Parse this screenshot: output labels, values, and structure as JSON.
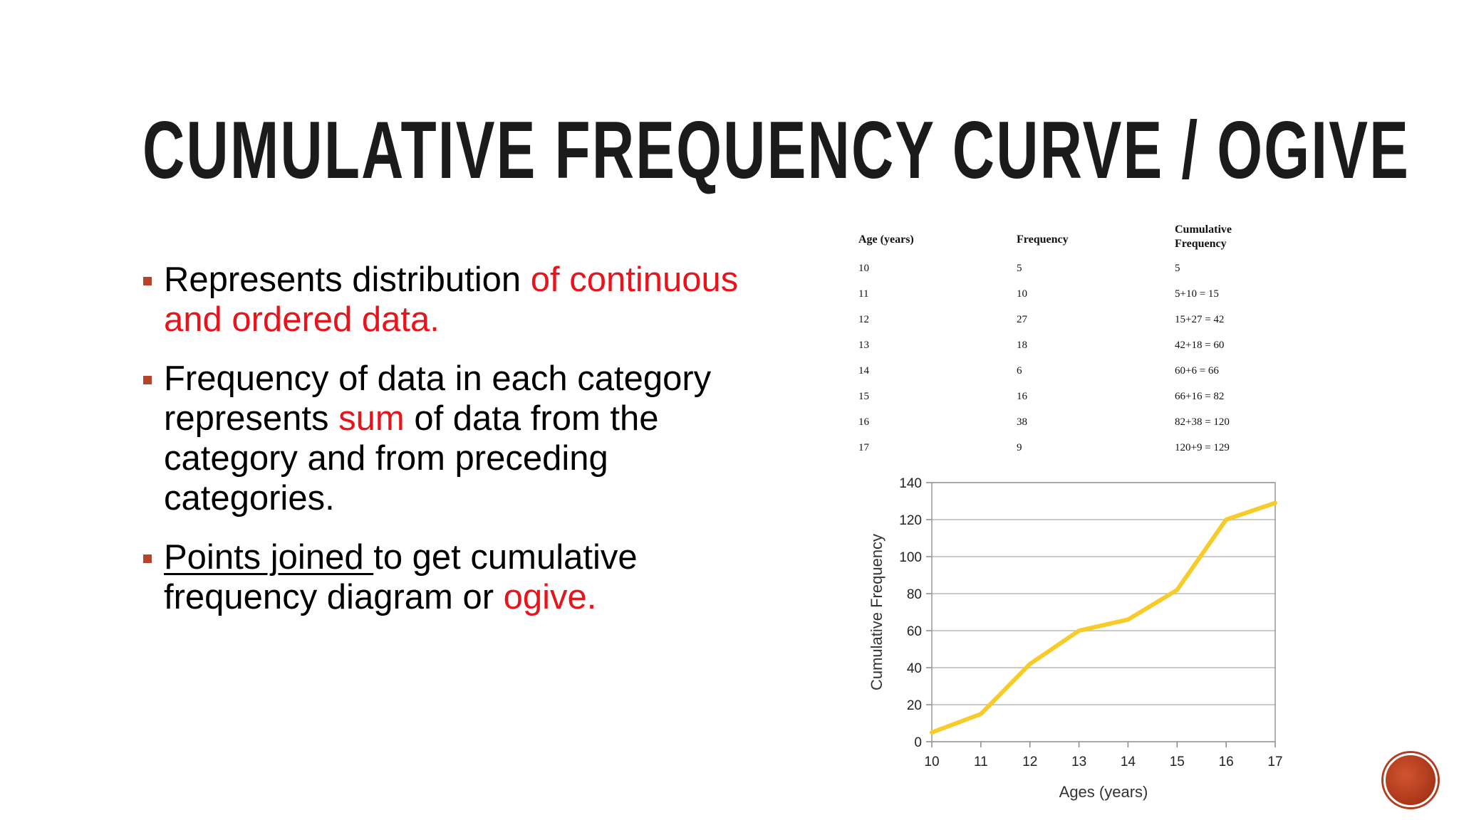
{
  "slide": {
    "title": "CUMULATIVE FREQUENCY CURVE / OGIVE",
    "bullets": [
      {
        "text1": "Represents distribution ",
        "red1": "of continuous and ordered data."
      },
      {
        "text1": "Frequency of data in each category represents ",
        "red1": "sum",
        "text2": " of data from the category  and from preceding categories."
      },
      {
        "underline": "Points joined ",
        "text1": "to get cumulative frequency diagram or ",
        "red1": "ogive."
      }
    ],
    "accent_color": "#e8141b",
    "bullet_color": "#b5442b"
  },
  "table": {
    "headers": [
      "Age (years)",
      "Frequency",
      "Cumulative Frequency"
    ],
    "rows": [
      [
        "10",
        "5",
        "5"
      ],
      [
        "11",
        "10",
        "5+10 = 15"
      ],
      [
        "12",
        "27",
        "15+27 = 42"
      ],
      [
        "13",
        "18",
        "42+18 = 60"
      ],
      [
        "14",
        "6",
        "60+6 = 66"
      ],
      [
        "15",
        "16",
        "66+16 = 82"
      ],
      [
        "16",
        "38",
        "82+38 = 120"
      ],
      [
        "17",
        "9",
        "120+9 = 129"
      ]
    ]
  },
  "chart_data": {
    "type": "line",
    "x": [
      10,
      11,
      12,
      13,
      14,
      15,
      16,
      17
    ],
    "series": [
      {
        "values": [
          5,
          15,
          42,
          60,
          66,
          82,
          120,
          129
        ],
        "color": "#f7cc2a"
      }
    ],
    "xlabel": "Ages (years)",
    "ylabel": "Cumulative Frequency",
    "xlim": [
      10,
      17
    ],
    "ylim": [
      0,
      140
    ],
    "xticks": [
      10,
      11,
      12,
      13,
      14,
      15,
      16,
      17
    ],
    "yticks": [
      0,
      20,
      40,
      60,
      80,
      100,
      120,
      140
    ],
    "grid": true,
    "legend": "none"
  },
  "nav": {
    "icon": "circle-nav-icon"
  }
}
